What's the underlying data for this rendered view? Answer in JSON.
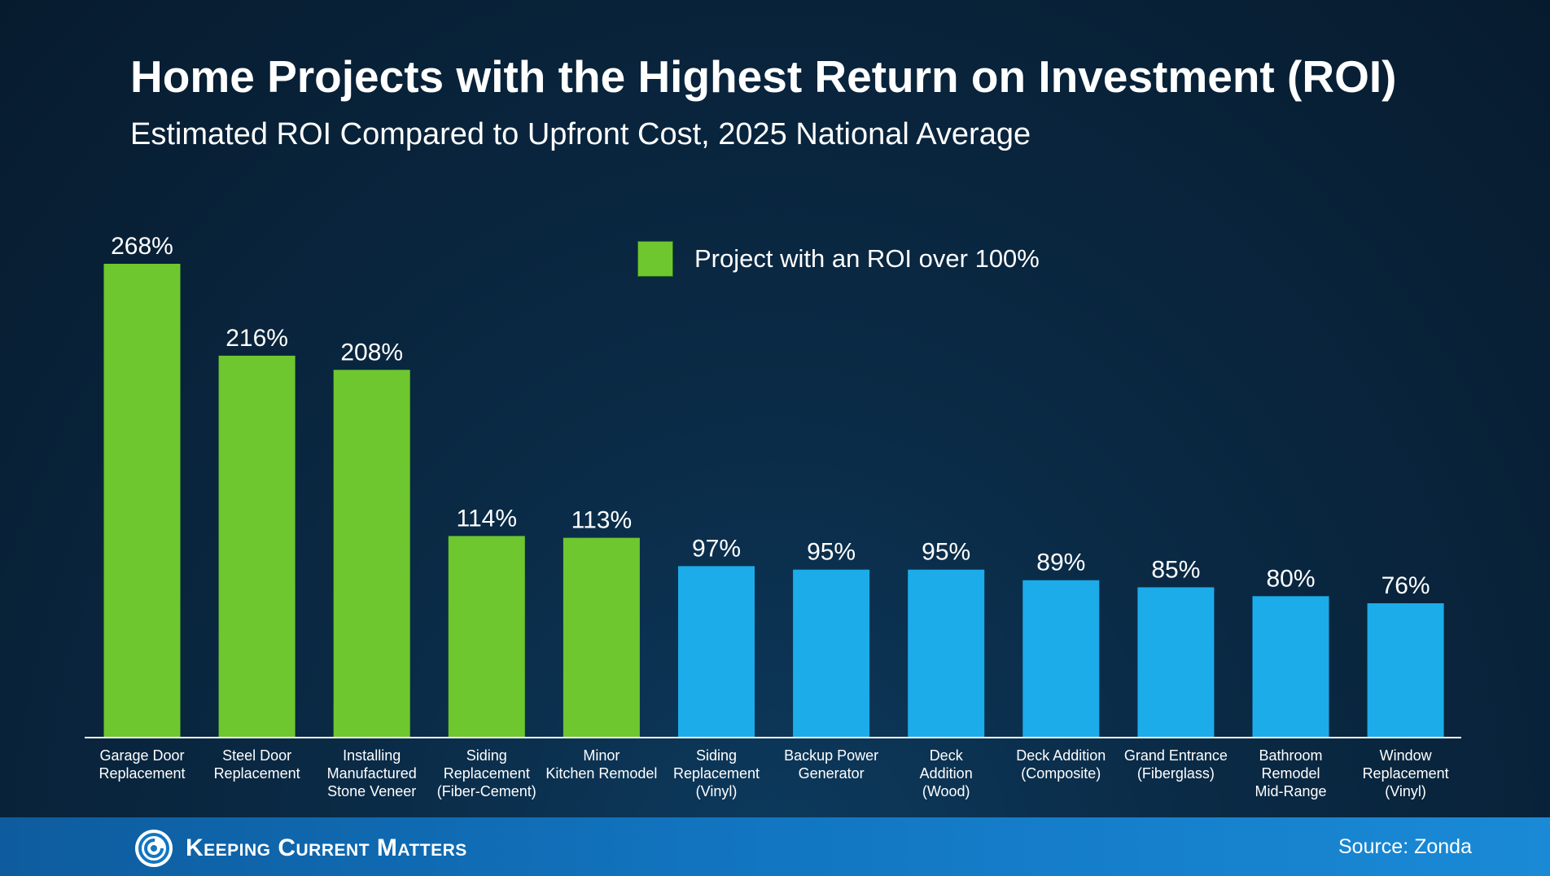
{
  "title": "Home Projects with the Highest Return on Investment (ROI)",
  "subtitle": "Estimated ROI Compared to Upfront Cost, 2025 National Average",
  "legend": {
    "label": "Project with an ROI over 100%"
  },
  "colors": {
    "green": "#6ec72e",
    "blue": "#1cacea",
    "axis": "#ffffff"
  },
  "footer": {
    "brand": "Keeping Current Matters",
    "source": "Source: Zonda"
  },
  "chart_data": {
    "type": "bar",
    "title": "Home Projects with the Highest Return on Investment (ROI)",
    "subtitle": "Estimated ROI Compared to Upfront Cost, 2025 National Average",
    "xlabel": "",
    "ylabel": "",
    "ylim": [
      0,
      268
    ],
    "grid": false,
    "legend_position": "top-center",
    "value_suffix": "%",
    "highlight_threshold": 100,
    "categories": [
      [
        "Garage Door",
        "Replacement"
      ],
      [
        "Steel Door",
        "Replacement"
      ],
      [
        "Installing",
        "Manufactured",
        "Stone Veneer"
      ],
      [
        "Siding",
        "Replacement",
        "(Fiber-Cement)"
      ],
      [
        "Minor",
        "Kitchen Remodel"
      ],
      [
        "Siding",
        "Replacement",
        "(Vinyl)"
      ],
      [
        "Backup Power",
        "Generator"
      ],
      [
        "Deck",
        "Addition",
        "(Wood)"
      ],
      [
        "Deck Addition",
        "(Composite)"
      ],
      [
        "Grand Entrance",
        "(Fiberglass)"
      ],
      [
        "Bathroom",
        "Remodel",
        "Mid-Range"
      ],
      [
        "Window",
        "Replacement",
        "(Vinyl)"
      ]
    ],
    "values": [
      268,
      216,
      208,
      114,
      113,
      97,
      95,
      95,
      89,
      85,
      80,
      76
    ],
    "value_labels": [
      "268%",
      "216%",
      "208%",
      "114%",
      "113%",
      "97%",
      "95%",
      "95%",
      "89%",
      "85%",
      "80%",
      "76%"
    ]
  }
}
